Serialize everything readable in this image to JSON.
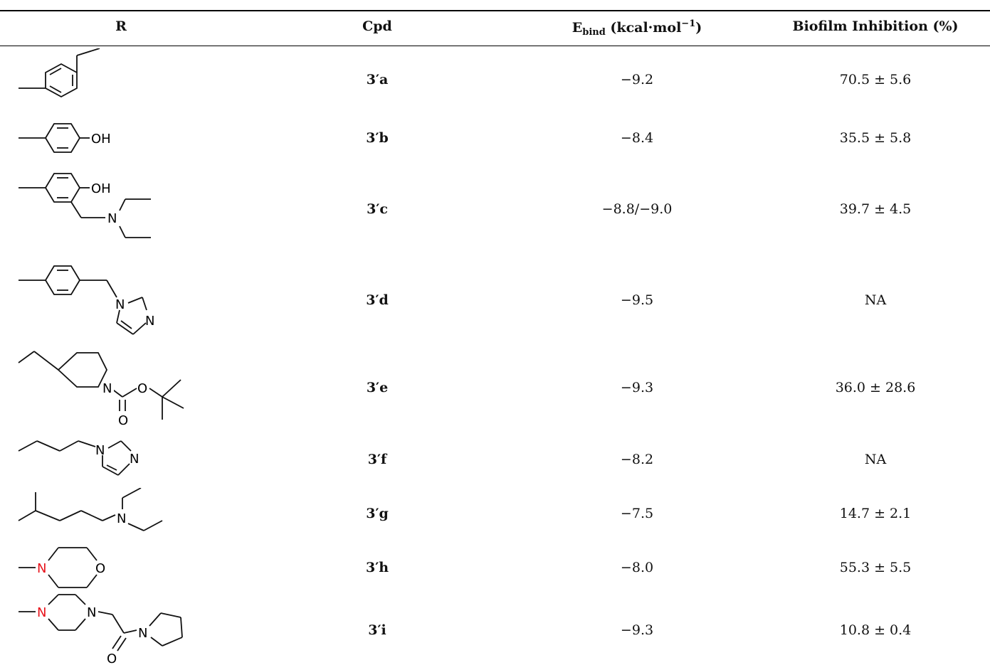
{
  "header": {
    "r": "R",
    "cpd": "Cpd",
    "ebind_main": "E",
    "ebind_sub": "bind",
    "ebind_unit": " (kcal·mol",
    "ebind_sup": "−1",
    "ebind_close": ")",
    "biofilm": "Biofilm Inhibition (%)"
  },
  "atoms": {
    "OH": "OH",
    "N": "N",
    "O": "O"
  },
  "colors": {
    "highlight_nitrogen": "#e8141c"
  },
  "rows": [
    {
      "cpd": "3′a",
      "ebind": "−9.2",
      "biofilm": "70.5 ± 5.6"
    },
    {
      "cpd": "3′b",
      "ebind": "−8.4",
      "biofilm": "35.5 ± 5.8"
    },
    {
      "cpd": "3′c",
      "ebind": "−8.8/−9.0",
      "biofilm": "39.7 ± 4.5"
    },
    {
      "cpd": "3′d",
      "ebind": "−9.5",
      "biofilm": "NA"
    },
    {
      "cpd": "3′e",
      "ebind": "−9.3",
      "biofilm": "36.0 ± 28.6"
    },
    {
      "cpd": "3′f",
      "ebind": "−8.2",
      "biofilm": "NA"
    },
    {
      "cpd": "3′g",
      "ebind": "−7.5",
      "biofilm": "14.7 ± 2.1"
    },
    {
      "cpd": "3′h",
      "ebind": "−8.0",
      "biofilm": "55.3 ± 5.5"
    },
    {
      "cpd": "3′i",
      "ebind": "−9.3",
      "biofilm": "10.8 ± 0.4"
    }
  ]
}
